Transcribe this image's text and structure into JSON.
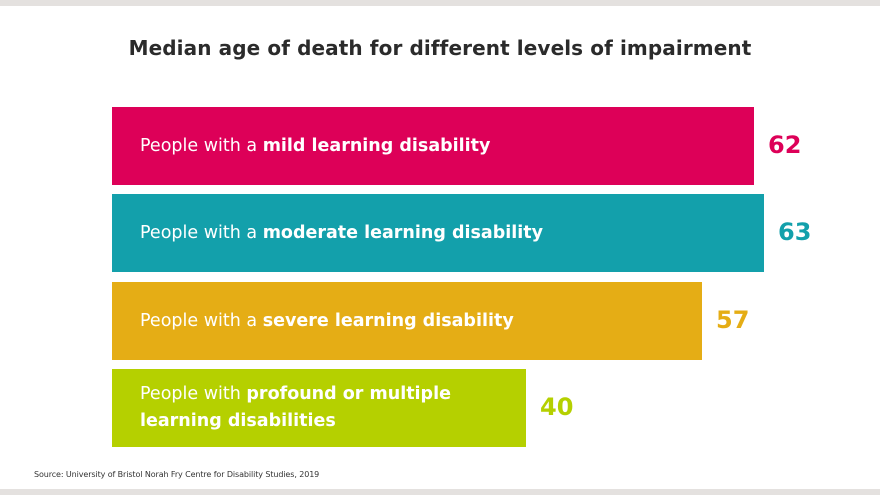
{
  "chart_data": {
    "type": "bar",
    "orientation": "horizontal",
    "title": "Median age of death for different levels of impairment",
    "categories": [
      "People with a mild learning disability",
      "People with a moderate learning disability",
      "People with a severe learning disability",
      "People with profound or multiple learning disabilities"
    ],
    "values": [
      62,
      63,
      57,
      40
    ],
    "xlim": [
      0,
      63
    ],
    "grid": false,
    "bars": [
      {
        "pre": "People with a ",
        "emph": "mild learning disability",
        "value": "62",
        "color": "#dd0058"
      },
      {
        "pre": "People with a ",
        "emph": "moderate learning disability",
        "value": "63",
        "color": "#13a0ab"
      },
      {
        "pre": "People with a ",
        "emph": "severe learning disability",
        "value": "57",
        "color": "#e5ad15"
      },
      {
        "pre": "People with ",
        "emph": "profound or multiple",
        "emph2": "learning disabilities",
        "value": "40",
        "color": "#b5d000"
      }
    ],
    "source": "Source: University of Bristol Norah Fry Centre for Disability Studies, 2019"
  }
}
